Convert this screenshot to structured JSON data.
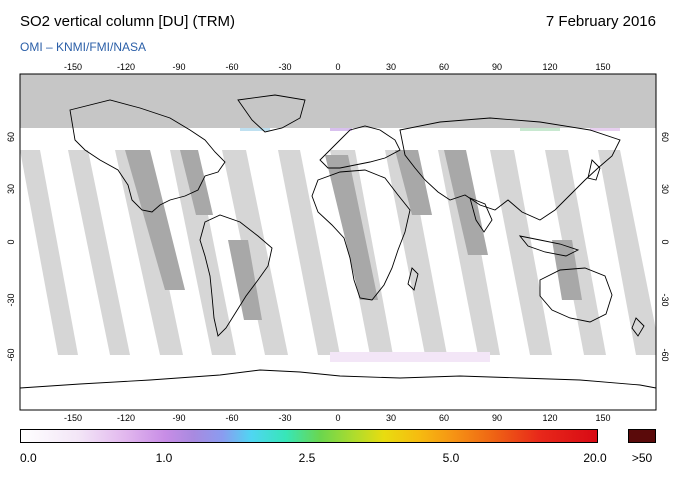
{
  "header": {
    "title": "SO2 vertical column [DU] (TRM)",
    "date": "7 February 2016",
    "source": "OMI  –  KNMI/FMI/NASA"
  },
  "map": {
    "lon_ticks": [
      "-150",
      "-120",
      "-90",
      "-60",
      "-30",
      "0",
      "30",
      "60",
      "90",
      "120",
      "150"
    ],
    "lat_ticks": [
      "60",
      "30",
      "0",
      "-30",
      "-60"
    ],
    "colors": {
      "no_data": "#c8c8c8",
      "orbit_gap": "#d4d4d4",
      "orbit_gap_dark": "#a8a8a8",
      "coastline": "#000000",
      "background": "#ffffff"
    }
  },
  "colorbar": {
    "labels": [
      "0.0",
      "1.0",
      "2.5",
      "5.0",
      "20.0"
    ],
    "over_label": ">50",
    "over_color": "#5a0a0a"
  }
}
